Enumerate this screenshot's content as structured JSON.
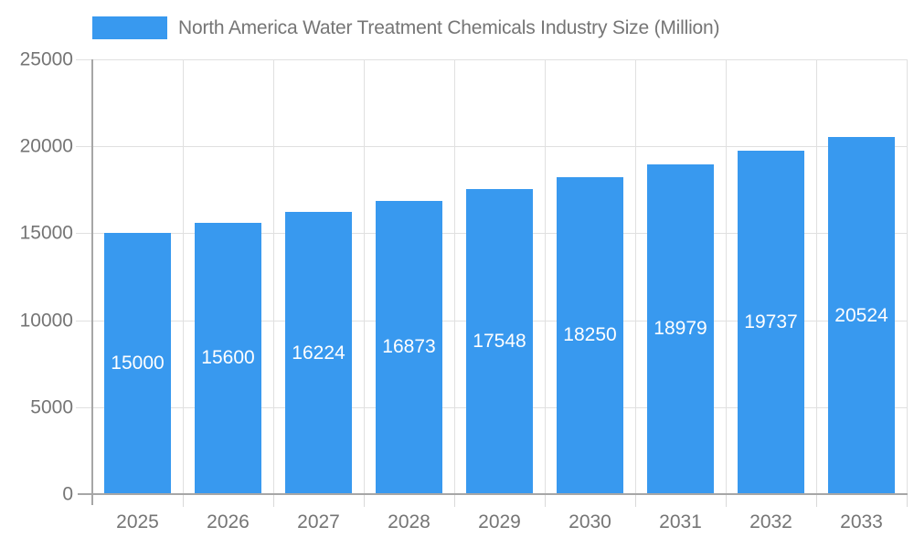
{
  "chart_data": {
    "type": "bar",
    "title": "North America Water Treatment Chemicals Industry Size (Million)",
    "legend": {
      "position": "top-left",
      "items": [
        {
          "label": "North America Water Treatment Chemicals Industry Size (Million)",
          "swatch_color": "#3899ef"
        }
      ]
    },
    "categories": [
      "2025",
      "2026",
      "2027",
      "2028",
      "2029",
      "2030",
      "2031",
      "2032",
      "2033"
    ],
    "series": [
      {
        "name": "North America Water Treatment Chemicals Industry Size (Million)",
        "values": [
          15000,
          15600,
          16224,
          16873,
          17548,
          18250,
          18979,
          19737,
          20524
        ]
      }
    ],
    "data_labels": [
      "15000",
      "15600",
      "16224",
      "16873",
      "17548",
      "18250",
      "18979",
      "19737",
      "20524"
    ],
    "xlabel": "",
    "ylabel": "",
    "ylim": [
      0,
      25000
    ],
    "yticks": [
      0,
      5000,
      10000,
      15000,
      20000,
      25000
    ],
    "ytick_labels": [
      "0",
      "5000",
      "10000",
      "15000",
      "20000",
      "25000"
    ],
    "grid": true,
    "colors": {
      "bar": "#3899ef",
      "gridline": "#e0e0e0",
      "axis_line": "#a6a6a6",
      "axis_text": "#757575",
      "bar_label_text": "#ffffff",
      "background": "#ffffff"
    }
  }
}
